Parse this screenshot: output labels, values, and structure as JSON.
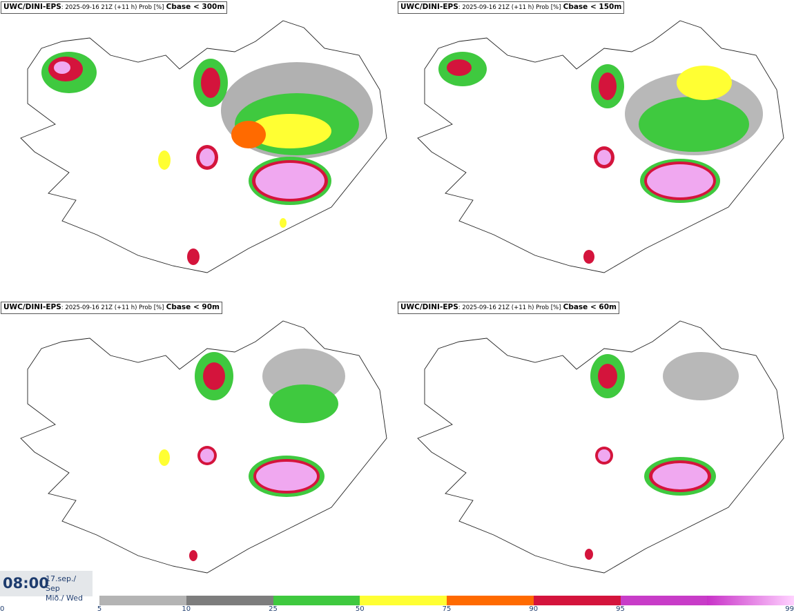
{
  "panels": [
    {
      "model": "UWC/DINI-EPS",
      "run": ": 2025-09-16 21Z (+11 h) Prob [%]",
      "field": "Cbase < 300m"
    },
    {
      "model": "UWC/DINI-EPS",
      "run": ": 2025-09-16 21Z (+11 h) Prob [%]",
      "field": "Cbase < 150m"
    },
    {
      "model": "UWC/DINI-EPS",
      "run": ": 2025-09-16 21Z (+11 h) Prob [%]",
      "field": "Cbase < 90m"
    },
    {
      "model": "UWC/DINI-EPS",
      "run": ": 2025-09-16 21Z (+11 h) Prob [%]",
      "field": "Cbase < 60m"
    }
  ],
  "valid_time": {
    "time": "08:00",
    "date_line1": "17.sep./ Sep",
    "date_line2": "Mið./ Wed"
  },
  "colorbar": {
    "ticks": [
      "0",
      "5",
      "10",
      "25",
      "50",
      "75",
      "90",
      "95",
      "99"
    ],
    "colors": [
      "#b4b4b4",
      "#7d7d7d",
      "#3fc93f",
      "#ffff33",
      "#ff6a00",
      "#d4143c",
      "#c83cc8",
      "#f0a8f0"
    ],
    "gradient_last": [
      "#c832c8",
      "#ffd2ff"
    ]
  },
  "map": {
    "region": "Iceland",
    "background": "#ffffff",
    "coast_color": "#222222",
    "road_color": "#666666"
  }
}
